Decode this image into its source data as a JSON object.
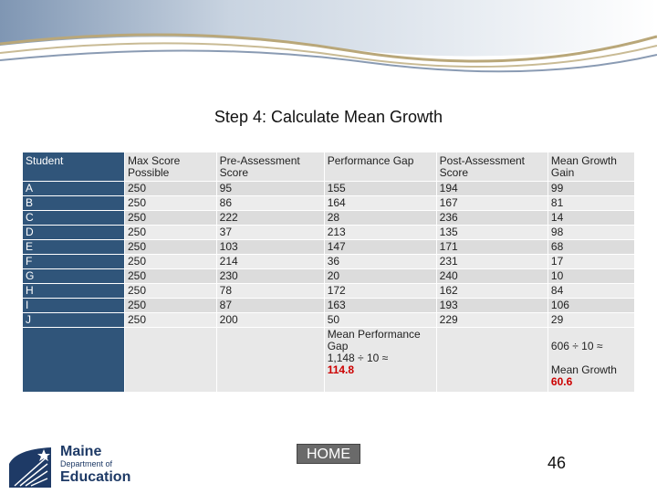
{
  "title": "Step 4: Calculate Mean Growth",
  "headers": [
    "Student",
    "Max Score Possible",
    "Pre-Assessment Score",
    "Performance Gap",
    "Post-Assessment Score",
    "Mean Growth Gain"
  ],
  "rows": [
    [
      "A",
      "250",
      "95",
      "155",
      "194",
      "99"
    ],
    [
      "B",
      "250",
      "86",
      "164",
      "167",
      "81"
    ],
    [
      "C",
      "250",
      "222",
      "28",
      "236",
      "14"
    ],
    [
      "D",
      "250",
      "37",
      "213",
      "135",
      "98"
    ],
    [
      "E",
      "250",
      "103",
      "147",
      "171",
      "68"
    ],
    [
      "F",
      "250",
      "214",
      "36",
      "231",
      "17"
    ],
    [
      "G",
      "250",
      "230",
      "20",
      "240",
      "10"
    ],
    [
      "H",
      "250",
      "78",
      "172",
      "162",
      "84"
    ],
    [
      "I",
      "250",
      "87",
      "163",
      "193",
      "106"
    ],
    [
      "J",
      "250",
      "200",
      "50",
      "229",
      "29"
    ]
  ],
  "summary": {
    "gap_label": "Mean Performance Gap",
    "gap_calc": "1,148 ÷ 10 ≈",
    "gap_value": "114.8",
    "growth_calc": "606 ÷ 10 ≈",
    "growth_label": "Mean Growth",
    "growth_value": "60.6"
  },
  "logo": {
    "line1": "Maine",
    "line2": "Department of",
    "line3": "Education"
  },
  "home_label": "HOME",
  "page_number": "46"
}
